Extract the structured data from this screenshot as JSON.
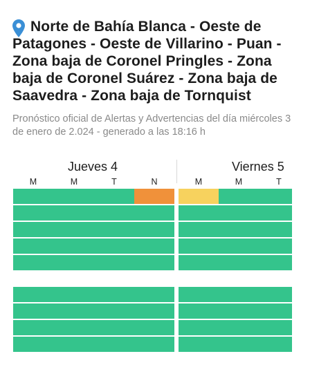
{
  "header": {
    "title": "Norte de Bahía Blanca - Oeste de Patagones - Oeste de Villarino - Puan - Zona baja de Coronel Pringles - Zona baja de Coronel Suárez - Zona baja de Saavedra - Zona baja de Tornquist",
    "subtitle": "Pronóstico oficial de Alertas y Advertencias del día miércoles 3 de enero de 2.024 - generado a las 18:16 h",
    "location_icon": "location-pin-icon"
  },
  "forecast": {
    "days": [
      {
        "label": "Jueves 4",
        "slots": [
          "M",
          "M",
          "T",
          "N"
        ]
      },
      {
        "label": "Viernes 5",
        "slots": [
          "M",
          "M",
          "T"
        ]
      }
    ],
    "colors": {
      "green": "#34c48c",
      "orange": "#f0913a",
      "yellow": "#f7d25e"
    },
    "groups": [
      {
        "rows": [
          {
            "jueves": [
              "green",
              "green",
              "green",
              "orange"
            ],
            "viernes": [
              "yellow",
              "green",
              "green"
            ]
          },
          {
            "jueves": [
              "green",
              "green",
              "green",
              "green"
            ],
            "viernes": [
              "green",
              "green",
              "green"
            ]
          },
          {
            "jueves": [
              "green",
              "green",
              "green",
              "green"
            ],
            "viernes": [
              "green",
              "green",
              "green"
            ]
          },
          {
            "jueves": [
              "green",
              "green",
              "green",
              "green"
            ],
            "viernes": [
              "green",
              "green",
              "green"
            ]
          },
          {
            "jueves": [
              "green",
              "green",
              "green",
              "green"
            ],
            "viernes": [
              "green",
              "green",
              "green"
            ]
          }
        ]
      },
      {
        "rows": [
          {
            "jueves": [
              "green",
              "green",
              "green",
              "green"
            ],
            "viernes": [
              "green",
              "green",
              "green"
            ]
          },
          {
            "jueves": [
              "green",
              "green",
              "green",
              "green"
            ],
            "viernes": [
              "green",
              "green",
              "green"
            ]
          },
          {
            "jueves": [
              "green",
              "green",
              "green",
              "green"
            ],
            "viernes": [
              "green",
              "green",
              "green"
            ]
          },
          {
            "jueves": [
              "green",
              "green",
              "green",
              "green"
            ],
            "viernes": [
              "green",
              "green",
              "green"
            ]
          }
        ]
      }
    ]
  }
}
